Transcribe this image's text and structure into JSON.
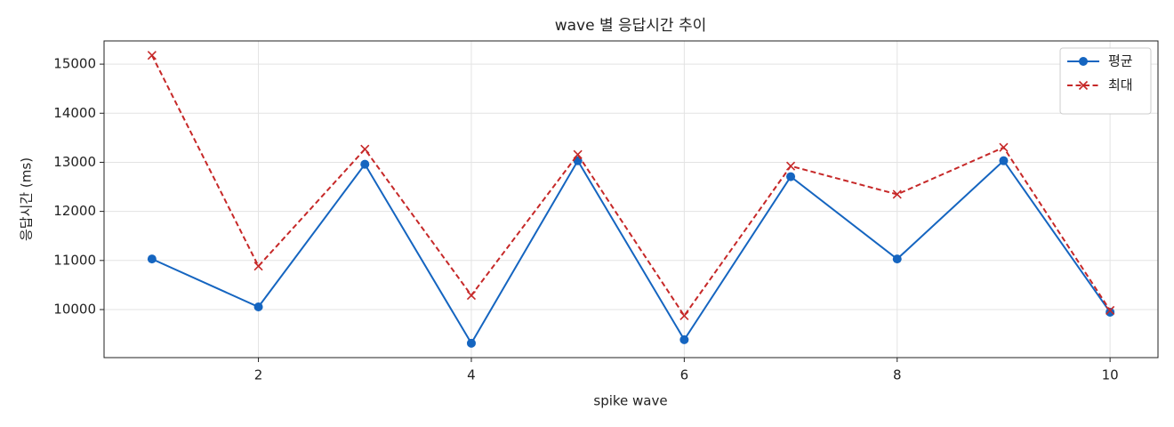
{
  "chart_data": {
    "type": "line",
    "title": "wave 별 응답시간 추이",
    "xlabel": "spike wave",
    "ylabel": "응답시간 (ms)",
    "x": [
      1,
      2,
      3,
      4,
      5,
      6,
      7,
      8,
      9,
      10
    ],
    "series": [
      {
        "name": "평균",
        "color": "#1565c0",
        "marker": "o",
        "linestyle": "solid",
        "values": [
          11030,
          10054,
          12960,
          9314,
          13032,
          9386,
          12708,
          11030,
          13032,
          9946
        ]
      },
      {
        "name": "최대",
        "color": "#c62828",
        "marker": "x",
        "linestyle": "dashed",
        "values": [
          15180,
          10884,
          13267,
          10289,
          13159,
          9874,
          12924,
          12347,
          13303,
          9982
        ]
      }
    ],
    "xlim": [
      0.55,
      10.45
    ],
    "xticks": [
      2,
      4,
      6,
      8,
      10
    ],
    "ylim": [
      9021,
      15473
    ],
    "yticks": [
      10000,
      11000,
      12000,
      13000,
      14000,
      15000
    ],
    "grid": true,
    "legend": "upper right"
  }
}
